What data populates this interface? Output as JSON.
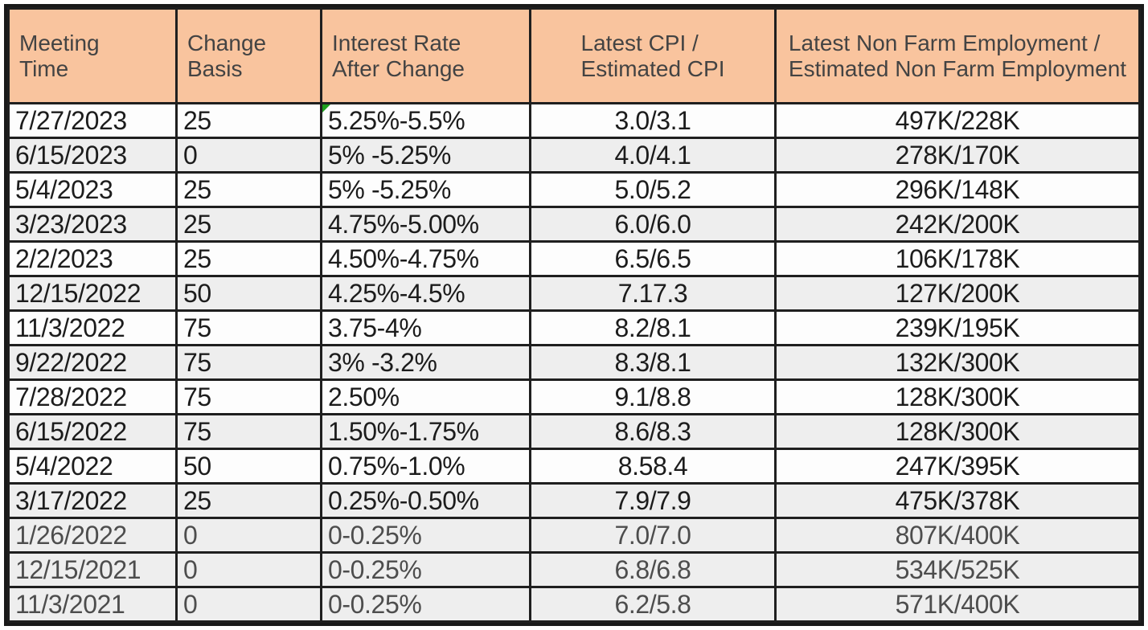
{
  "colors": {
    "header_bg": "#f9c49e",
    "row_white": "#fdfdfd",
    "row_gray": "#eeeeee",
    "border": "#1f1f1f",
    "text": "#1c1c1c",
    "text_muted": "#4d4d4d",
    "marker_green": "#1fa11f"
  },
  "table": {
    "description": "FOMC meeting rate decisions table",
    "columns": [
      {
        "id": "meeting_time",
        "label_lines": [
          "Meeting",
          "Time"
        ]
      },
      {
        "id": "change_basis",
        "label_lines": [
          "Change",
          "Basis"
        ]
      },
      {
        "id": "interest_rate",
        "label_lines": [
          "Interest Rate",
          "After Change"
        ]
      },
      {
        "id": "cpi",
        "label_lines": [
          "Latest CPI /",
          "Estimated CPI"
        ]
      },
      {
        "id": "nonfarm",
        "label_lines": [
          "Latest Non Farm Employment /",
          "Estimated Non Farm Employment"
        ]
      }
    ],
    "rows": [
      {
        "meeting_time": "7/27/2023",
        "change_basis": "25",
        "interest_rate": "5.25%-5.5%",
        "cpi": "3.0/3.1",
        "nonfarm": "497K/228K",
        "shaded": false,
        "muted": false,
        "marker": true
      },
      {
        "meeting_time": "6/15/2023",
        "change_basis": "0",
        "interest_rate": "5% -5.25%",
        "cpi": "4.0/4.1",
        "nonfarm": "278K/170K",
        "shaded": true,
        "muted": false,
        "marker": false
      },
      {
        "meeting_time": "5/4/2023",
        "change_basis": "25",
        "interest_rate": "5% -5.25%",
        "cpi": "5.0/5.2",
        "nonfarm": "296K/148K",
        "shaded": false,
        "muted": false,
        "marker": false
      },
      {
        "meeting_time": "3/23/2023",
        "change_basis": "25",
        "interest_rate": "4.75%-5.00%",
        "cpi": "6.0/6.0",
        "nonfarm": "242K/200K",
        "shaded": true,
        "muted": false,
        "marker": false
      },
      {
        "meeting_time": "2/2/2023",
        "change_basis": "25",
        "interest_rate": "4.50%-4.75%",
        "cpi": "6.5/6.5",
        "nonfarm": "106K/178K",
        "shaded": false,
        "muted": false,
        "marker": false
      },
      {
        "meeting_time": "12/15/2022",
        "change_basis": "50",
        "interest_rate": "4.25%-4.5%",
        "cpi": "7.17.3",
        "nonfarm": "127K/200K",
        "shaded": true,
        "muted": false,
        "marker": false
      },
      {
        "meeting_time": "11/3/2022",
        "change_basis": "75",
        "interest_rate": "3.75-4%",
        "cpi": "8.2/8.1",
        "nonfarm": "239K/195K",
        "shaded": false,
        "muted": false,
        "marker": false
      },
      {
        "meeting_time": "9/22/2022",
        "change_basis": "75",
        "interest_rate": "3% -3.2%",
        "cpi": "8.3/8.1",
        "nonfarm": "132K/300K",
        "shaded": true,
        "muted": false,
        "marker": false
      },
      {
        "meeting_time": "7/28/2022",
        "change_basis": "75",
        "interest_rate": "2.50%",
        "cpi": "9.1/8.8",
        "nonfarm": "128K/300K",
        "shaded": false,
        "muted": false,
        "marker": false
      },
      {
        "meeting_time": "6/15/2022",
        "change_basis": "75",
        "interest_rate": "1.50%-1.75%",
        "cpi": "8.6/8.3",
        "nonfarm": "128K/300K",
        "shaded": true,
        "muted": false,
        "marker": false
      },
      {
        "meeting_time": "5/4/2022",
        "change_basis": "50",
        "interest_rate": "0.75%-1.0%",
        "cpi": "8.58.4",
        "nonfarm": "247K/395K",
        "shaded": false,
        "muted": false,
        "marker": false
      },
      {
        "meeting_time": "3/17/2022",
        "change_basis": "25",
        "interest_rate": "0.25%-0.50%",
        "cpi": "7.9/7.9",
        "nonfarm": "475K/378K",
        "shaded": true,
        "muted": false,
        "marker": false
      },
      {
        "meeting_time": "1/26/2022",
        "change_basis": "0",
        "interest_rate": "0-0.25%",
        "cpi": "7.0/7.0",
        "nonfarm": "807K/400K",
        "shaded": true,
        "muted": true,
        "marker": false
      },
      {
        "meeting_time": "12/15/2021",
        "change_basis": "0",
        "interest_rate": "0-0.25%",
        "cpi": "6.8/6.8",
        "nonfarm": "534K/525K",
        "shaded": true,
        "muted": true,
        "marker": false
      },
      {
        "meeting_time": "11/3/2021",
        "change_basis": "0",
        "interest_rate": "0-0.25%",
        "cpi": "6.2/5.8",
        "nonfarm": "571K/400K",
        "shaded": true,
        "muted": true,
        "marker": false
      }
    ]
  }
}
